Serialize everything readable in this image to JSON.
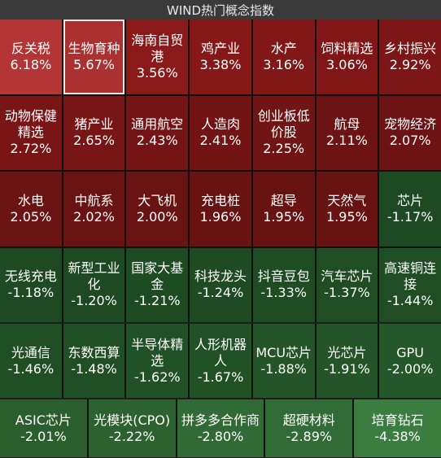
{
  "title": "WIND热门概念指数",
  "tiles": [
    {
      "name": "反关税",
      "chg": "6.18%",
      "color": "#b43535"
    },
    {
      "name": "生物育种",
      "chg": "5.67%",
      "color": "#ab3030"
    },
    {
      "name": "海南自贸港",
      "chg": "3.56%",
      "color": "#8a1a1a"
    },
    {
      "name": "鸡产业",
      "chg": "3.38%",
      "color": "#861818"
    },
    {
      "name": "水产",
      "chg": "3.16%",
      "color": "#821717"
    },
    {
      "name": "饲料精选",
      "chg": "3.06%",
      "color": "#801616"
    },
    {
      "name": "乡村振兴",
      "chg": "2.92%",
      "color": "#7d1616"
    },
    {
      "name": "动物保健精选",
      "chg": "2.72%",
      "color": "#7a1515"
    },
    {
      "name": "猪产业",
      "chg": "2.65%",
      "color": "#781515"
    },
    {
      "name": "通用航空",
      "chg": "2.43%",
      "color": "#741414"
    },
    {
      "name": "人造肉",
      "chg": "2.41%",
      "color": "#731414"
    },
    {
      "name": "创业板低价股",
      "chg": "2.25%",
      "color": "#711414"
    },
    {
      "name": "航母",
      "chg": "2.11%",
      "color": "#6e1313"
    },
    {
      "name": "宠物经济",
      "chg": "2.07%",
      "color": "#6d1313"
    },
    {
      "name": "水电",
      "chg": "2.05%",
      "color": "#6c1313"
    },
    {
      "name": "中航系",
      "chg": "2.02%",
      "color": "#6b1313"
    },
    {
      "name": "大飞机",
      "chg": "2.00%",
      "color": "#6a1313"
    },
    {
      "name": "充电桩",
      "chg": "1.96%",
      "color": "#691212"
    },
    {
      "name": "超导",
      "chg": "1.95%",
      "color": "#691212"
    },
    {
      "name": "天然气",
      "chg": "1.95%",
      "color": "#691212"
    },
    {
      "name": "芯片",
      "chg": "-1.17%",
      "color": "#1d4a22"
    },
    {
      "name": "无线充电",
      "chg": "-1.18%",
      "color": "#1d4a22"
    },
    {
      "name": "新型工业化",
      "chg": "-1.20%",
      "color": "#1d4a22"
    },
    {
      "name": "国家大基金",
      "chg": "-1.21%",
      "color": "#1d4b22"
    },
    {
      "name": "科技龙头",
      "chg": "-1.24%",
      "color": "#1e4b23"
    },
    {
      "name": "抖音豆包",
      "chg": "-1.33%",
      "color": "#1e4c23"
    },
    {
      "name": "汽车芯片",
      "chg": "-1.37%",
      "color": "#1f4d24"
    },
    {
      "name": "高速铜连接",
      "chg": "-1.44%",
      "color": "#1f4e24"
    }
  ],
  "tiles_row5": [
    {
      "name": "光通信",
      "chg": "-1.46%",
      "color": "#204f25"
    },
    {
      "name": "东数西算",
      "chg": "-1.48%",
      "color": "#204f25"
    },
    {
      "name": "半导体精选",
      "chg": "-1.62%",
      "color": "#215126"
    },
    {
      "name": "人形机器人",
      "chg": "-1.67%",
      "color": "#215226"
    },
    {
      "name": "MCU芯片",
      "chg": "-1.88%",
      "color": "#235528"
    },
    {
      "name": "光芯片",
      "chg": "-1.91%",
      "color": "#235528"
    },
    {
      "name": "GPU",
      "chg": "-2.00%",
      "color": "#245729"
    }
  ],
  "tiles_row6": [
    {
      "name": "ASIC芯片",
      "chg": "-2.01%",
      "color": "#2a5f2d"
    },
    {
      "name": "光模块(CPO)",
      "chg": "-2.22%",
      "color": "#2c6230"
    },
    {
      "name": "拼多多合作商",
      "chg": "-2.80%",
      "color": "#306a34"
    },
    {
      "name": "超硬材料",
      "chg": "-2.89%",
      "color": "#316b35"
    },
    {
      "name": "培育钻石",
      "chg": "-4.38%",
      "color": "#3a7d3e"
    }
  ]
}
